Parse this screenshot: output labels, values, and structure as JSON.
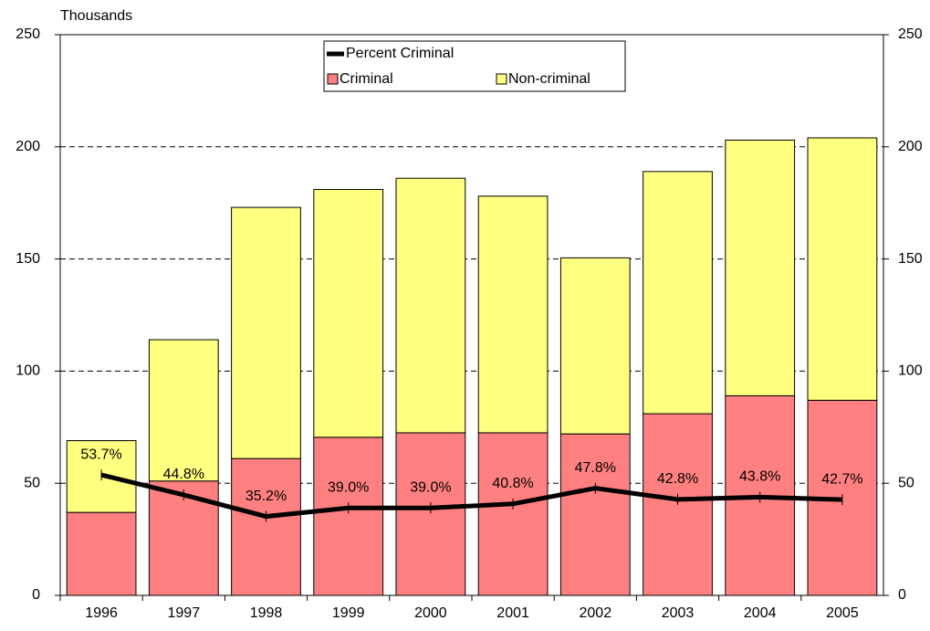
{
  "chart_data": {
    "type": "bar",
    "stacked": true,
    "y_label": "Thousands",
    "categories": [
      "1996",
      "1997",
      "1998",
      "1999",
      "2000",
      "2001",
      "2002",
      "2003",
      "2004",
      "2005"
    ],
    "series": [
      {
        "name": "Criminal",
        "color": "#ff8080",
        "values": [
          37,
          51,
          61,
          70.5,
          72.5,
          72.5,
          72,
          81,
          89,
          87
        ]
      },
      {
        "name": "Non-criminal",
        "color": "#ffff80",
        "values": [
          32,
          63,
          112,
          110.5,
          113.5,
          105.5,
          78.5,
          108,
          114,
          117
        ]
      },
      {
        "name": "Percent Criminal",
        "type": "line",
        "axis": "y2",
        "color": "#000000",
        "values": [
          53.7,
          44.8,
          35.2,
          39.0,
          39.0,
          40.8,
          47.8,
          42.8,
          43.8,
          42.7
        ],
        "value_labels": [
          "53.7%",
          "44.8%",
          "35.2%",
          "39.0%",
          "39.0%",
          "40.8%",
          "47.8%",
          "42.8%",
          "43.8%",
          "42.7%"
        ]
      }
    ],
    "ylim": [
      0,
      250
    ],
    "yticks": [
      0,
      50,
      100,
      150,
      200,
      250
    ],
    "y2lim": [
      0,
      250
    ],
    "y2ticks": [
      0,
      50,
      100,
      150,
      200,
      250
    ],
    "grid": true
  }
}
